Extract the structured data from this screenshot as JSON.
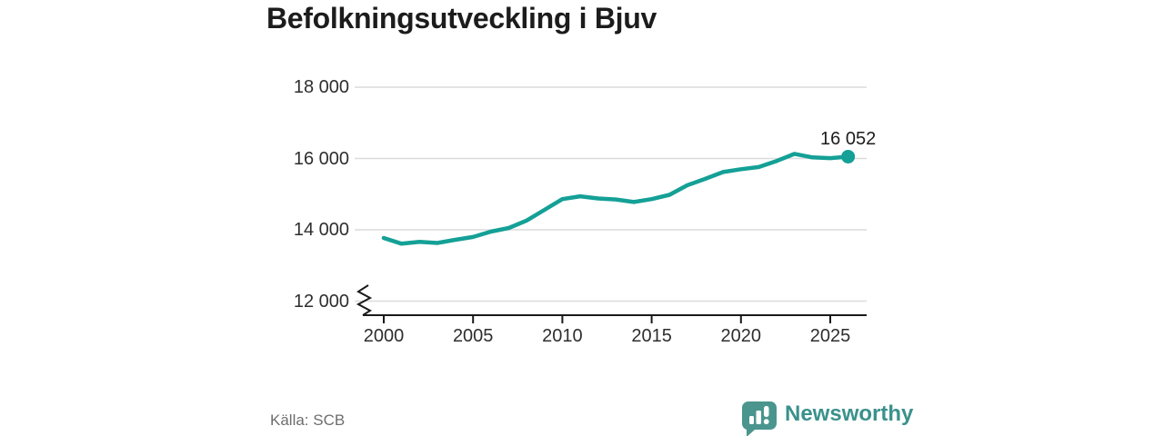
{
  "chart_data": {
    "type": "line",
    "title": "Befolkningsutveckling i Bjuv",
    "source": "Källa: SCB",
    "x": [
      2000,
      2001,
      2002,
      2003,
      2004,
      2005,
      2006,
      2007,
      2008,
      2009,
      2010,
      2011,
      2012,
      2013,
      2014,
      2015,
      2016,
      2017,
      2018,
      2019,
      2020,
      2021,
      2022,
      2023,
      2024,
      2025,
      2026
    ],
    "values": [
      13770,
      13610,
      13660,
      13630,
      13720,
      13800,
      13950,
      14050,
      14260,
      14560,
      14860,
      14940,
      14880,
      14850,
      14780,
      14860,
      14980,
      15250,
      15430,
      15620,
      15700,
      15760,
      15930,
      16130,
      16030,
      16010,
      16052
    ],
    "end_value": 16052,
    "end_label": "16 052",
    "yticks": [
      {
        "value": 12000,
        "label": "12 000"
      },
      {
        "value": 14000,
        "label": "14 000"
      },
      {
        "value": 16000,
        "label": "16 000"
      },
      {
        "value": 18000,
        "label": "18 000"
      }
    ],
    "xticks": [
      {
        "value": 2000,
        "label": "2000"
      },
      {
        "value": 2005,
        "label": "2005"
      },
      {
        "value": 2010,
        "label": "2010"
      },
      {
        "value": 2015,
        "label": "2015"
      },
      {
        "value": 2020,
        "label": "2020"
      },
      {
        "value": 2025,
        "label": "2025"
      }
    ],
    "ylim": [
      12000,
      18000
    ],
    "axis_break": true,
    "grid": true,
    "legend": "none",
    "line_color": "#14a096",
    "grid_color": "#dcdcdc",
    "axis_color": "#1a1a1a"
  },
  "brand": {
    "name": "Newsworthy",
    "text_color": "#3a918c",
    "mark_color": "#4a958e"
  }
}
